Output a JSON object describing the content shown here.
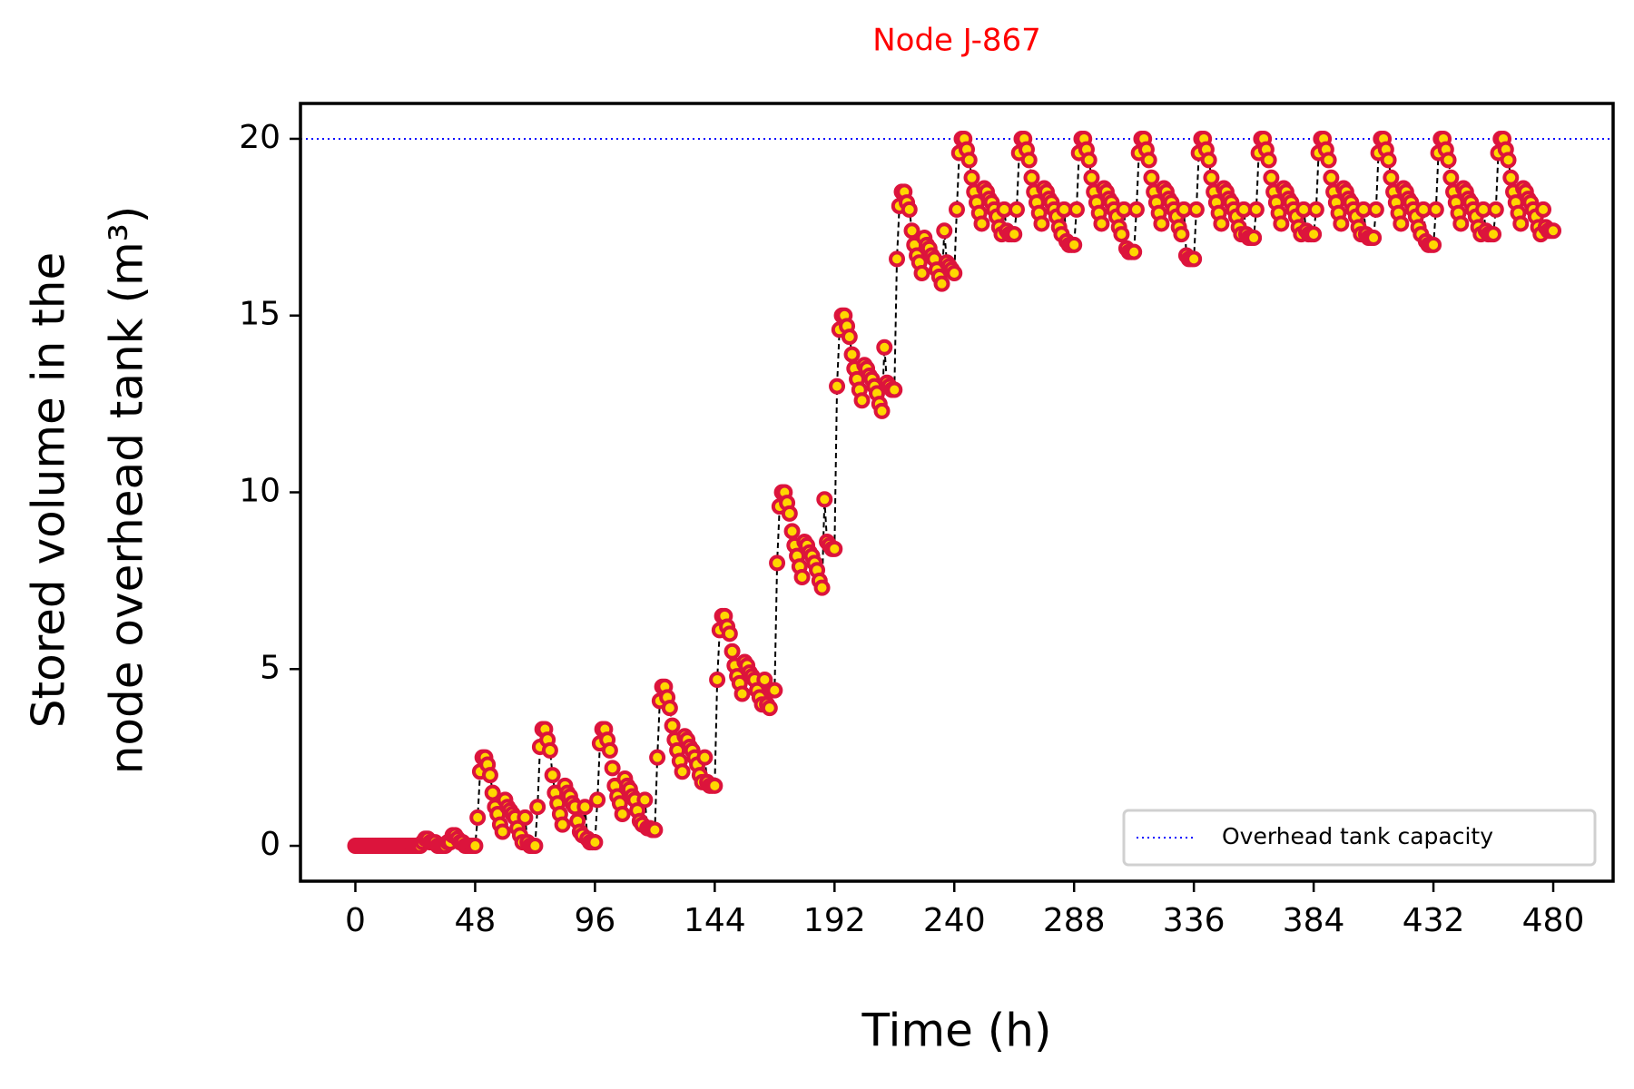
{
  "chart_data": {
    "type": "line",
    "title": "Node J-867",
    "title_color": "#ff0000",
    "xlabel": "Time (h)",
    "ylabel": [
      "Stored volume in the",
      "node overhead tank (m³)"
    ],
    "xlim": [
      -22,
      504
    ],
    "ylim": [
      -1,
      21
    ],
    "xticks": [
      0,
      48,
      96,
      144,
      192,
      240,
      288,
      336,
      384,
      432,
      480
    ],
    "yticks": [
      0,
      5,
      10,
      15,
      20
    ],
    "legend_position": "lower right",
    "hlines": [
      {
        "name": "Overhead tank capacity",
        "value": 20,
        "color": "#0000ff",
        "style": "dotted"
      }
    ],
    "x": [
      0,
      1,
      2,
      3,
      4,
      5,
      6,
      7,
      8,
      9,
      10,
      11,
      12,
      13,
      14,
      15,
      16,
      17,
      18,
      19,
      20,
      21,
      22,
      23,
      24,
      25,
      26,
      27,
      28,
      29,
      30,
      31,
      32,
      33,
      34,
      35,
      36,
      37,
      38,
      39,
      40,
      41,
      42,
      43,
      44,
      45,
      46,
      47,
      48,
      49,
      50,
      51,
      52,
      53,
      54,
      55,
      56,
      57,
      58,
      59,
      60,
      61,
      62,
      63,
      64,
      65,
      66,
      67,
      68,
      69,
      70,
      71,
      72,
      73,
      74,
      75,
      76,
      77,
      78,
      79,
      80,
      81,
      82,
      83,
      84,
      85,
      86,
      87,
      88,
      89,
      90,
      91,
      92,
      93,
      94,
      95,
      96,
      97,
      98,
      99,
      100,
      101,
      102,
      103,
      104,
      105,
      106,
      107,
      108,
      109,
      110,
      111,
      112,
      113,
      114,
      115,
      116,
      117,
      118,
      119,
      120,
      121,
      122,
      123,
      124,
      125,
      126,
      127,
      128,
      129,
      130,
      131,
      132,
      133,
      134,
      135,
      136,
      137,
      138,
      139,
      140,
      141,
      142,
      143,
      144,
      145,
      146,
      147,
      148,
      149,
      150,
      151,
      152,
      153,
      154,
      155,
      156,
      157,
      158,
      159,
      160,
      161,
      162,
      163,
      164,
      165,
      166,
      167,
      168,
      169,
      170,
      171,
      172,
      173,
      174,
      175,
      176,
      177,
      178,
      179,
      180,
      181,
      182,
      183,
      184,
      185,
      186,
      187,
      188,
      189,
      190,
      191,
      192,
      193,
      194,
      195,
      196,
      197,
      198,
      199,
      200,
      201,
      202,
      203,
      204,
      205,
      206,
      207,
      208,
      209,
      210,
      211,
      212,
      213,
      214,
      215,
      216,
      217,
      218,
      219,
      220,
      221,
      222,
      223,
      224,
      225,
      226,
      227,
      228,
      229,
      230,
      231,
      232,
      233,
      234,
      235,
      236,
      237,
      238,
      239,
      240,
      241,
      242,
      243,
      244,
      245,
      246,
      247,
      248,
      249,
      250,
      251,
      252,
      253,
      254,
      255,
      256,
      257,
      258,
      259,
      260,
      261,
      262,
      263,
      264,
      265,
      266,
      267,
      268,
      269,
      270,
      271,
      272,
      273,
      274,
      275,
      276,
      277,
      278,
      279,
      280,
      281,
      282,
      283,
      284,
      285,
      286,
      287,
      288,
      289,
      290,
      291,
      292,
      293,
      294,
      295,
      296,
      297,
      298,
      299,
      300,
      301,
      302,
      303,
      304,
      305,
      306,
      307,
      308,
      309,
      310,
      311,
      312,
      313,
      314,
      315,
      316,
      317,
      318,
      319,
      320,
      321,
      322,
      323,
      324,
      325,
      326,
      327,
      328,
      329,
      330,
      331,
      332,
      333,
      334,
      335,
      336,
      337,
      338,
      339,
      340,
      341,
      342,
      343,
      344,
      345,
      346,
      347,
      348,
      349,
      350,
      351,
      352,
      353,
      354,
      355,
      356,
      357,
      358,
      359,
      360,
      361,
      362,
      363,
      364,
      365,
      366,
      367,
      368,
      369,
      370,
      371,
      372,
      373,
      374,
      375,
      376,
      377,
      378,
      379,
      380,
      381,
      382,
      383,
      384,
      385,
      386,
      387,
      388,
      389,
      390,
      391,
      392,
      393,
      394,
      395,
      396,
      397,
      398,
      399,
      400,
      401,
      402,
      403,
      404,
      405,
      406,
      407,
      408,
      409,
      410,
      411,
      412,
      413,
      414,
      415,
      416,
      417,
      418,
      419,
      420,
      421,
      422,
      423,
      424,
      425,
      426,
      427,
      428,
      429,
      430,
      431,
      432,
      433,
      434,
      435,
      436,
      437,
      438,
      439,
      440,
      441,
      442,
      443,
      444,
      445,
      446,
      447,
      448,
      449,
      450,
      451,
      452,
      453,
      454,
      455,
      456,
      457,
      458,
      459,
      460,
      461,
      462,
      463,
      464,
      465,
      466,
      467,
      468,
      469,
      470,
      471,
      472,
      473,
      474,
      475,
      476,
      477,
      478,
      479,
      480
    ],
    "series": [
      {
        "color": "#dc143c",
        "marker_fill": "#ffd700",
        "line_color": "#000000",
        "values": [
          0,
          0,
          0,
          0,
          0,
          0,
          0,
          0,
          0,
          0,
          0,
          0,
          0,
          0,
          0,
          0,
          0,
          0,
          0,
          0,
          0,
          0,
          0,
          0,
          0,
          0,
          0,
          0.1,
          0.2,
          0.2,
          0.1,
          0.1,
          0.1,
          0,
          0,
          0,
          0,
          0.1,
          0.1,
          0.3,
          0.3,
          0.2,
          0.1,
          0.1,
          0,
          0,
          0,
          0,
          0,
          0.8,
          2.1,
          2.5,
          2.5,
          2.3,
          2.0,
          1.5,
          1.1,
          0.9,
          0.6,
          0.4,
          1.3,
          1.1,
          1.0,
          0.9,
          0.8,
          0.5,
          0.3,
          0.1,
          0.8,
          0.1,
          0,
          0,
          0,
          1.1,
          2.8,
          3.3,
          3.3,
          3.0,
          2.7,
          2.0,
          1.5,
          1.2,
          0.9,
          0.6,
          1.7,
          1.5,
          1.4,
          1.2,
          1.1,
          0.7,
          0.4,
          0.3,
          1.1,
          0.2,
          0.1,
          0.1,
          0.1,
          1.3,
          2.9,
          3.3,
          3.3,
          3.0,
          2.7,
          2.2,
          1.7,
          1.4,
          1.2,
          0.9,
          1.9,
          1.7,
          1.6,
          1.4,
          1.3,
          1.0,
          0.7,
          0.6,
          1.3,
          0.5,
          0.5,
          0.45,
          0.45,
          2.5,
          4.1,
          4.5,
          4.5,
          4.2,
          3.9,
          3.4,
          3.0,
          2.7,
          2.4,
          2.1,
          3.1,
          3.0,
          2.8,
          2.7,
          2.5,
          2.3,
          2.0,
          1.8,
          2.5,
          1.8,
          1.7,
          1.7,
          1.7,
          4.7,
          6.1,
          6.5,
          6.5,
          6.2,
          6.0,
          5.5,
          5.1,
          4.8,
          4.6,
          4.3,
          5.2,
          5.1,
          4.9,
          4.8,
          4.7,
          4.4,
          4.2,
          4.0,
          4.7,
          4.0,
          3.9,
          4.4,
          4.4,
          8.0,
          9.6,
          10.0,
          10.0,
          9.7,
          9.4,
          8.9,
          8.5,
          8.2,
          7.9,
          7.6,
          8.6,
          8.5,
          8.3,
          8.2,
          8.0,
          7.8,
          7.5,
          7.3,
          9.8,
          8.6,
          8.5,
          8.4,
          8.4,
          13.0,
          14.6,
          15.0,
          15.0,
          14.7,
          14.4,
          13.9,
          13.5,
          13.2,
          12.9,
          12.6,
          13.6,
          13.5,
          13.3,
          13.2,
          13.0,
          12.8,
          12.5,
          12.3,
          14.1,
          13.1,
          13.0,
          12.9,
          12.9,
          16.6,
          18.1,
          18.5,
          18.5,
          18.2,
          18.0,
          17.4,
          17.0,
          16.7,
          16.5,
          16.2,
          17.2,
          17.0,
          16.9,
          16.7,
          16.6,
          16.3,
          16.1,
          15.9,
          17.4,
          16.5,
          16.4,
          16.3,
          16.2,
          18.0,
          19.6,
          20.0,
          20.0,
          19.7,
          19.4,
          18.9,
          18.5,
          18.2,
          17.9,
          17.6,
          18.6,
          18.5,
          18.3,
          18.2,
          18.0,
          17.8,
          17.5,
          17.3,
          18.0,
          17.4,
          17.3,
          17.3,
          17.3,
          18.0,
          19.6,
          20.0,
          20.0,
          19.7,
          19.4,
          18.9,
          18.5,
          18.2,
          17.9,
          17.6,
          18.6,
          18.5,
          18.3,
          18.2,
          18.0,
          17.8,
          17.5,
          17.3,
          18.0,
          17.1,
          17.0,
          17.0,
          17.0,
          18.0,
          19.6,
          20.0,
          20.0,
          19.7,
          19.4,
          18.9,
          18.5,
          18.2,
          17.9,
          17.6,
          18.6,
          18.5,
          18.3,
          18.2,
          18.0,
          17.8,
          17.5,
          17.3,
          18.0,
          16.9,
          16.8,
          16.8,
          16.8,
          18.0,
          19.6,
          20.0,
          20.0,
          19.7,
          19.4,
          18.9,
          18.5,
          18.2,
          17.9,
          17.6,
          18.6,
          18.5,
          18.3,
          18.2,
          18.0,
          17.8,
          17.5,
          17.3,
          18.0,
          16.7,
          16.6,
          16.6,
          16.6,
          18.0,
          19.6,
          20.0,
          20.0,
          19.7,
          19.4,
          18.9,
          18.5,
          18.2,
          17.9,
          17.6,
          18.6,
          18.5,
          18.3,
          18.2,
          18.0,
          17.8,
          17.5,
          17.3,
          18.0,
          17.3,
          17.2,
          17.2,
          17.2,
          18.0,
          19.6,
          20.0,
          20.0,
          19.7,
          19.4,
          18.9,
          18.5,
          18.2,
          17.9,
          17.6,
          18.6,
          18.5,
          18.3,
          18.2,
          18.0,
          17.8,
          17.5,
          17.3,
          18.0,
          17.4,
          17.3,
          17.3,
          17.3,
          18.0,
          19.6,
          20.0,
          20.0,
          19.7,
          19.4,
          18.9,
          18.5,
          18.2,
          17.9,
          17.6,
          18.6,
          18.5,
          18.3,
          18.2,
          18.0,
          17.8,
          17.5,
          17.3,
          18.0,
          17.3,
          17.2,
          17.2,
          17.2,
          18.0,
          19.6,
          20.0,
          20.0,
          19.7,
          19.4,
          18.9,
          18.5,
          18.2,
          17.9,
          17.6,
          18.6,
          18.5,
          18.3,
          18.2,
          18.0,
          17.8,
          17.5,
          17.3,
          18.0,
          17.1,
          17.0,
          17.0,
          17.0,
          18.0,
          19.6,
          20.0,
          20.0,
          19.7,
          19.4,
          18.9,
          18.5,
          18.2,
          17.9,
          17.6,
          18.6,
          18.5,
          18.3,
          18.2,
          18.0,
          17.8,
          17.5,
          17.3,
          18.0,
          17.4,
          17.3,
          17.3,
          17.3,
          18.0,
          19.6,
          20.0,
          20.0,
          19.7,
          19.4,
          18.9,
          18.5,
          18.2,
          17.9,
          17.6,
          18.6,
          18.5,
          18.3,
          18.2,
          18.0,
          17.8,
          17.5,
          17.3,
          18.0,
          17.5,
          17.4,
          17.4,
          17.4
        ]
      }
    ]
  }
}
